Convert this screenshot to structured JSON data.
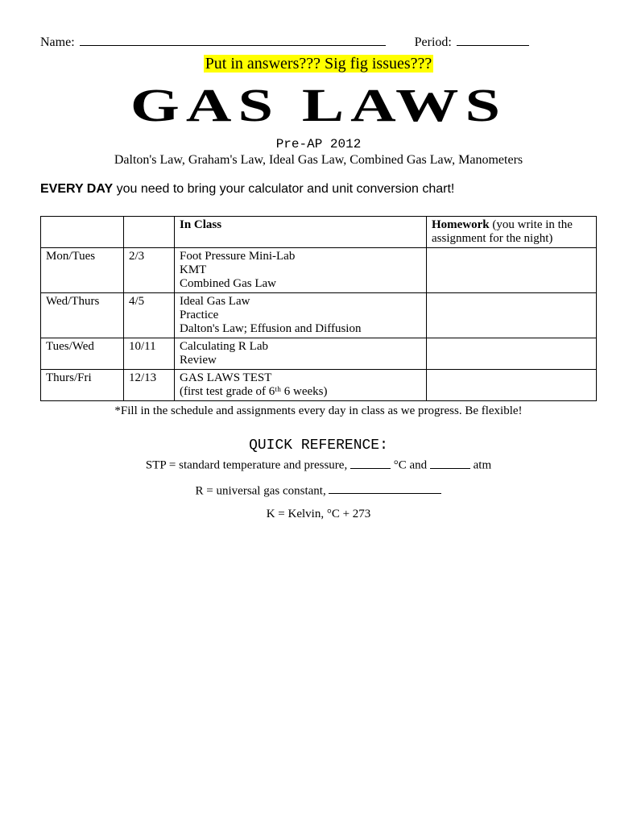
{
  "header": {
    "name_label": "Name:",
    "period_label": "Period:"
  },
  "highlight_text": "Put in answers??? Sig fig issues???",
  "title": "GAS LAWS",
  "subtitle_course": "Pre-AP 2012",
  "subtitle_topics": "Dalton's Law, Graham's Law, Ideal Gas Law, Combined Gas Law, Manometers",
  "everyday_bold": "EVERY DAY",
  "everyday_rest": " you need to bring your calculator and unit conversion chart!",
  "table": {
    "headers": {
      "day": "",
      "date": "",
      "in_class": "In Class",
      "homework_bold": "Homework",
      "homework_rest": " (you write in the assignment for the night)"
    },
    "rows": [
      {
        "day": "Mon/Tues",
        "date": "2/3",
        "in_class_lines": [
          "Foot Pressure Mini-Lab",
          "KMT",
          "Combined Gas Law"
        ],
        "homework": ""
      },
      {
        "day": "Wed/Thurs",
        "date": "4/5",
        "in_class_lines": [
          "Ideal Gas Law",
          "Practice",
          "Dalton's Law; Effusion and Diffusion"
        ],
        "homework": ""
      },
      {
        "day": "Tues/Wed",
        "date": "10/11",
        "in_class_lines": [
          "Calculating R Lab",
          "Review"
        ],
        "homework": ""
      },
      {
        "day": "Thurs/Fri",
        "date": "12/13",
        "in_class_lines": [
          "GAS LAWS TEST",
          "(first test grade of 6ᵗʰ 6 weeks)"
        ],
        "homework": ""
      }
    ]
  },
  "table_note": "*Fill in the schedule and assignments every day in class as we progress. Be flexible!",
  "quickref": {
    "title": "QUICK REFERENCE:",
    "stp_pre": "STP = standard temperature and pressure, ",
    "stp_mid": " °C and ",
    "stp_end": " atm",
    "r_pre": "R = universal gas constant, ",
    "kelvin": "K = Kelvin, °C + 273"
  }
}
